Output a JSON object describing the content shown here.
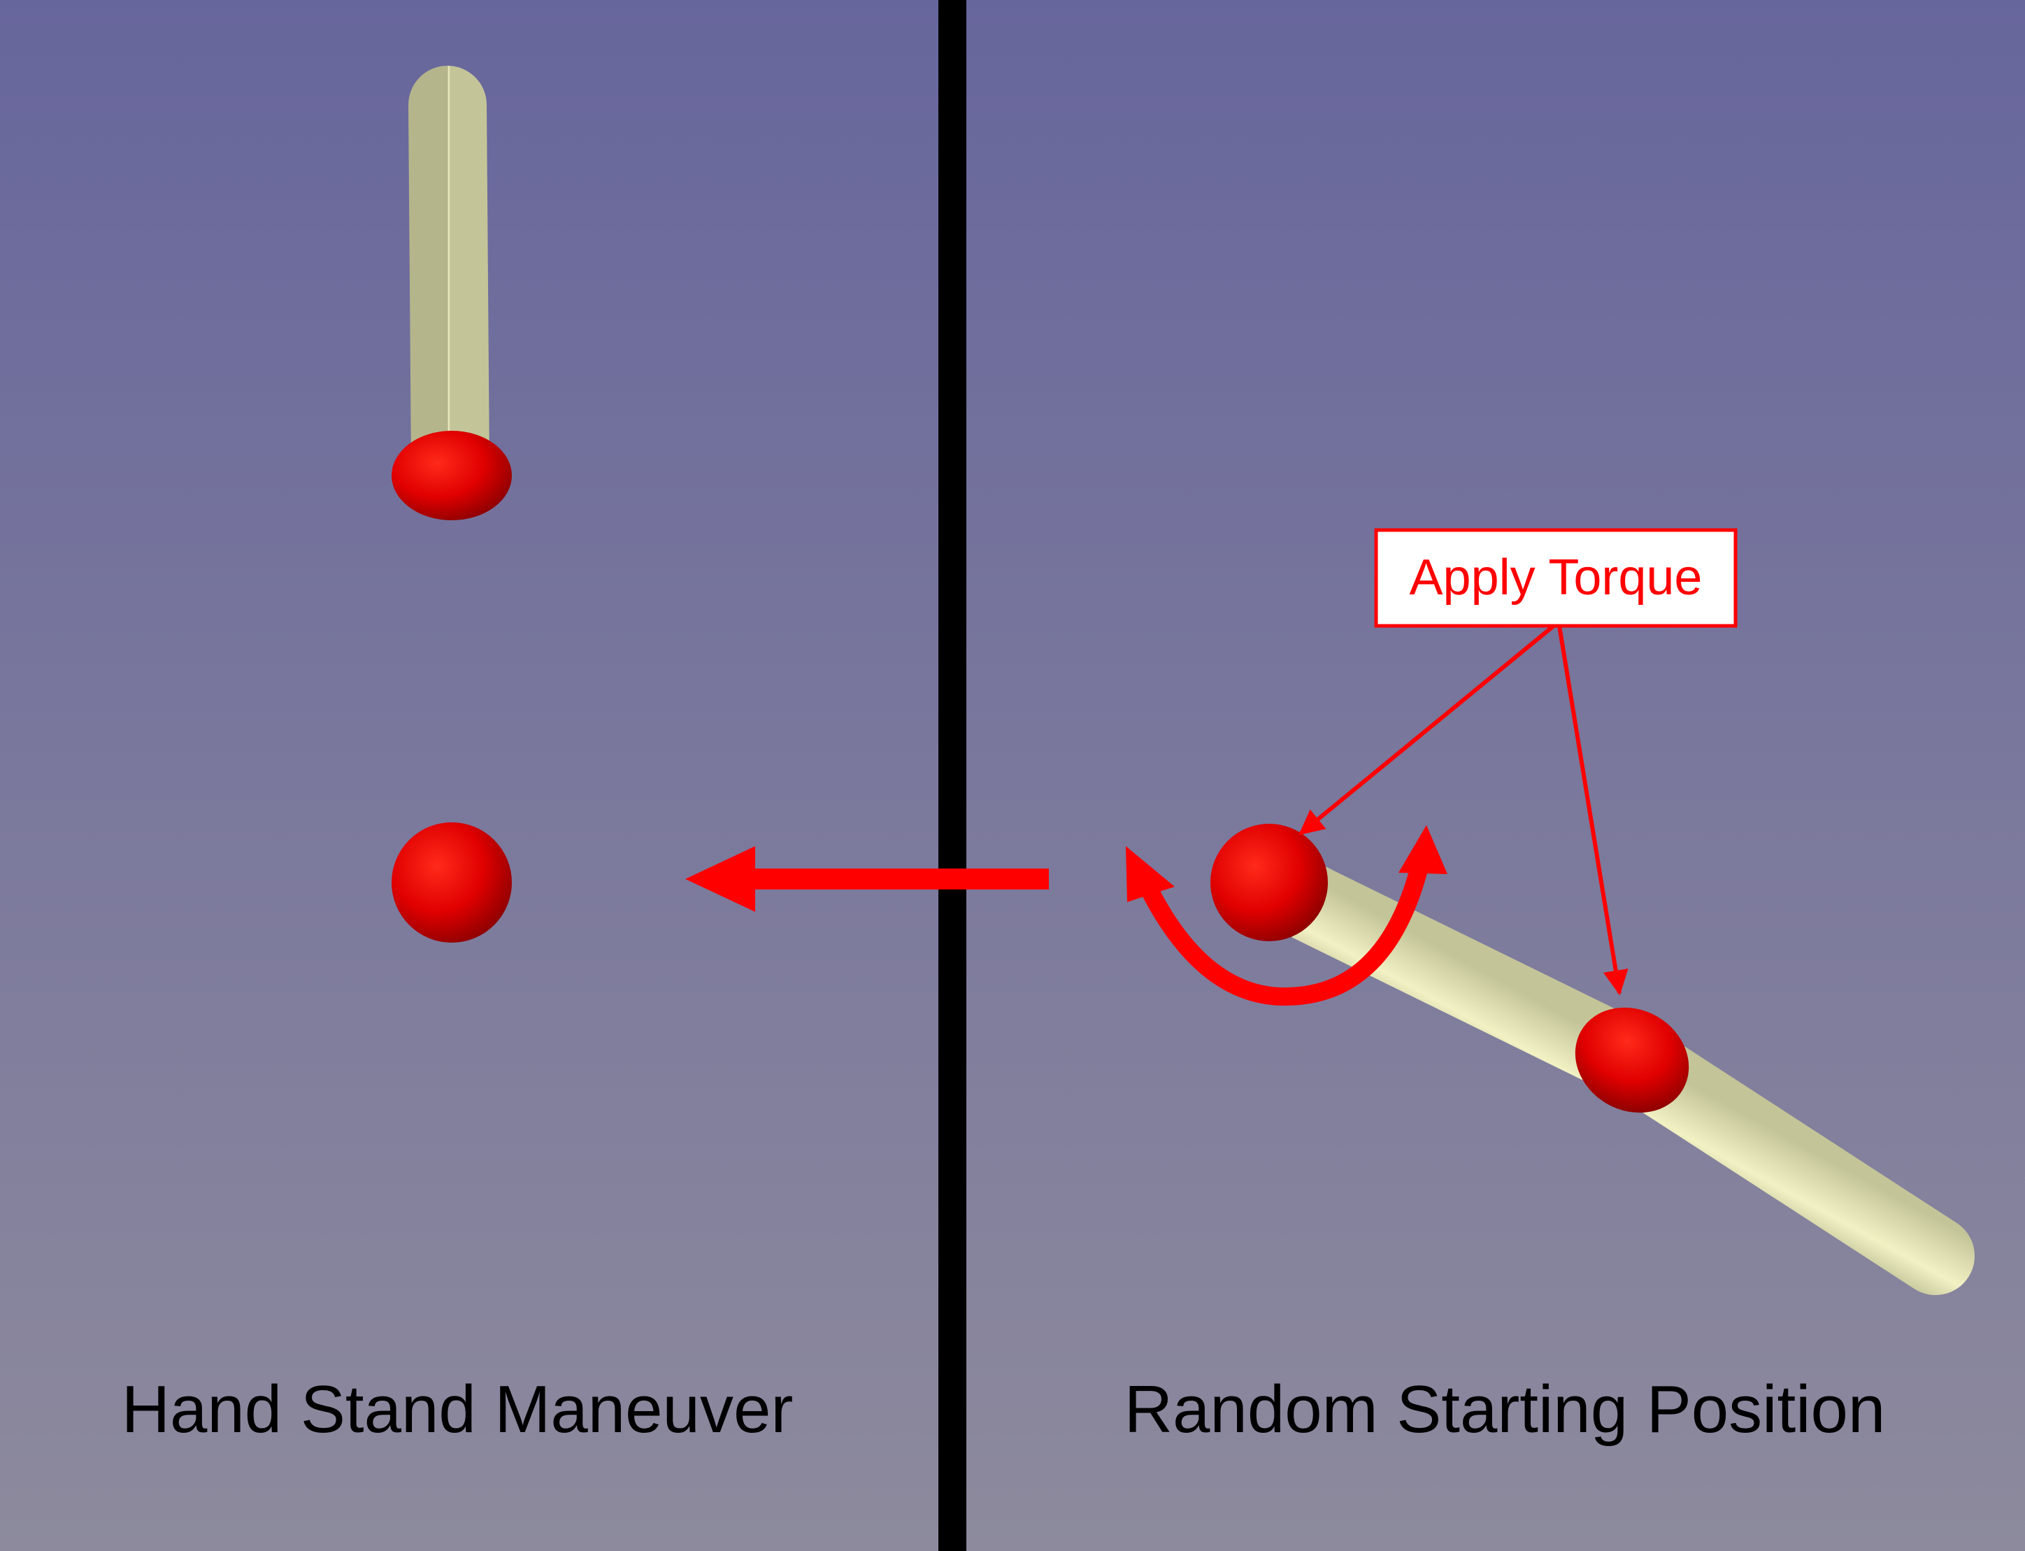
{
  "panels": {
    "left": {
      "caption": "Hand Stand Maneuver"
    },
    "right": {
      "caption": "Random Starting Position",
      "annotation": "Apply Torque"
    }
  },
  "colors": {
    "background_top": "#67669c",
    "background_bottom": "#8d8a9d",
    "divider": "#000000",
    "rod": "#eeeeba",
    "joint": "#e00000",
    "annotation": "#ff0000"
  }
}
